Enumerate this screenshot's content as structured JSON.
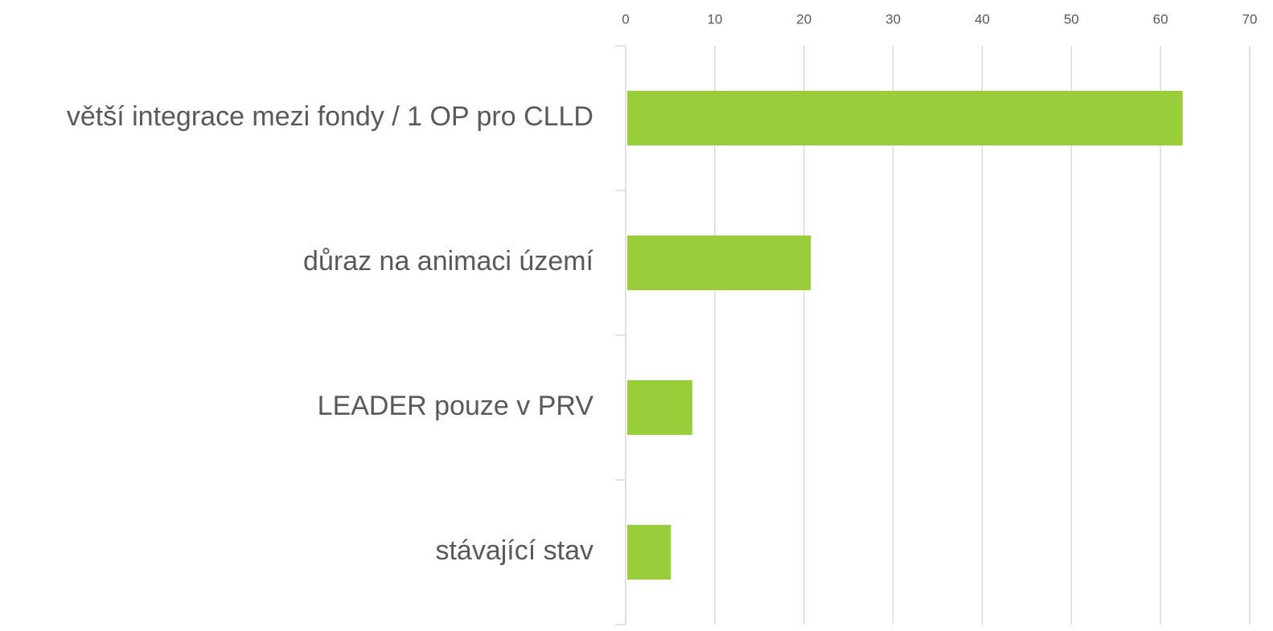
{
  "chart_data": {
    "type": "bar",
    "orientation": "horizontal",
    "categories": [
      "větší integrace mezi fondy / 1 OP pro CLLD",
      "důraz na animaci území",
      "LEADER pouze v PRV",
      "stávající stav"
    ],
    "values": [
      62.3,
      20.6,
      7.3,
      4.9
    ],
    "color": "#9acd3a",
    "xlim": [
      0,
      70
    ],
    "xticks": [
      0,
      10,
      20,
      30,
      40,
      50,
      60,
      70
    ],
    "grid": true
  }
}
